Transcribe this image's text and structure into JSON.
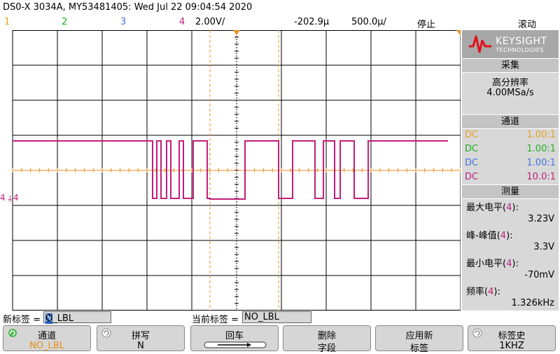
{
  "title": "DS0-X 3034A, MY53481405: Wed Jul 22 09:04:54 2020",
  "channels": {
    "ch1": "1",
    "ch2": "2",
    "ch3": "3",
    "ch4": "4",
    "volts_div": "2.00V/",
    "time_offset": "-202.9µ",
    "time_div": "500.0µ/",
    "run_state": "停止",
    "mode": "滚动"
  },
  "colors": {
    "ch1": "#e8a020",
    "ch2": "#20b020",
    "ch3": "#4070e0",
    "ch4": "#c0207a",
    "grid": "#000000",
    "cursor": "#e89020"
  },
  "markers": {
    "ch4_ground": "4",
    "ch4_side": "4"
  },
  "panel": {
    "brand": "KEYSIGHT",
    "brand_sub": "TECHNOLOGIES",
    "acquire_header": "采集",
    "acquire_mode": "高分辨率",
    "sample_rate": "4.00MSa/s",
    "channel_header": "通道",
    "channels": [
      {
        "coupling": "DC",
        "probe": "1.00:1"
      },
      {
        "coupling": "DC",
        "probe": "1.00:1"
      },
      {
        "coupling": "DC",
        "probe": "1.00:1"
      },
      {
        "coupling": "DC",
        "probe": "10.0:1"
      }
    ],
    "measure_header": "测量",
    "measurements": [
      {
        "name": "最大电平",
        "src": "4",
        "value": "3.23V"
      },
      {
        "name": "峰-峰值",
        "src": "4",
        "value": "3.3V"
      },
      {
        "name": "最小电平",
        "src": "4",
        "value": "-70mV"
      },
      {
        "name": "频率",
        "src": "4",
        "value": "1.326kHz"
      }
    ]
  },
  "labels": {
    "new_label_prefix": "新标签 =",
    "new_label_value": "NO_LBL",
    "current_label_prefix": "当前标签 =",
    "current_label_value": "NO_LBL"
  },
  "softkeys": [
    {
      "top": "通道",
      "bottom": "NO_LBL"
    },
    {
      "top": "拼写",
      "bottom": "N"
    },
    {
      "top": "回车",
      "bottom": ""
    },
    {
      "top": "删除",
      "bottom": "字段"
    },
    {
      "top": "应用新",
      "bottom": "标签"
    },
    {
      "top": "标签史",
      "bottom": "1KHZ"
    }
  ]
}
